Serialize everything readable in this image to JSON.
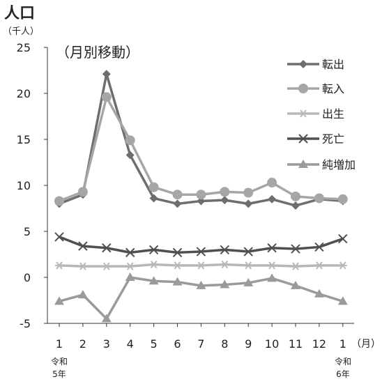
{
  "chart_data": {
    "type": "line",
    "title": "人口",
    "unit_label": "（千人）",
    "subtitle": "（月別移動）",
    "x_unit": "（月）",
    "categories": [
      "1",
      "2",
      "3",
      "4",
      "5",
      "6",
      "7",
      "8",
      "9",
      "10",
      "11",
      "12",
      "1"
    ],
    "start_note": [
      "令和",
      "5年"
    ],
    "end_note": [
      "令和",
      "6年"
    ],
    "ylim": [
      -5,
      25
    ],
    "yticks": [
      -5,
      0,
      5,
      10,
      15,
      20,
      25
    ],
    "grid": false,
    "legend_position": "top-right",
    "series": [
      {
        "name": "転出",
        "color": "#6e6e6e",
        "marker": "diamond",
        "values": [
          8.0,
          9.0,
          22.1,
          13.3,
          8.6,
          8.0,
          8.3,
          8.4,
          8.0,
          8.5,
          7.8,
          8.5,
          8.3
        ]
      },
      {
        "name": "転入",
        "color": "#a6a6a6",
        "marker": "circle",
        "values": [
          8.3,
          9.3,
          19.6,
          14.9,
          9.8,
          9.0,
          9.0,
          9.3,
          9.2,
          10.3,
          8.8,
          8.6,
          8.5
        ]
      },
      {
        "name": "出生",
        "color": "#b8b8b8",
        "marker": "asterisk",
        "values": [
          1.3,
          1.2,
          1.2,
          1.2,
          1.4,
          1.3,
          1.3,
          1.4,
          1.3,
          1.3,
          1.2,
          1.3,
          1.3
        ]
      },
      {
        "name": "死亡",
        "color": "#505050",
        "marker": "x",
        "values": [
          4.4,
          3.4,
          3.2,
          2.7,
          3.0,
          2.7,
          2.8,
          3.0,
          2.8,
          3.2,
          3.1,
          3.3,
          4.2
        ]
      },
      {
        "name": "純増加",
        "color": "#9a9a9a",
        "marker": "triangle",
        "values": [
          -2.6,
          -1.9,
          -4.5,
          0.0,
          -0.4,
          -0.5,
          -0.9,
          -0.8,
          -0.6,
          -0.1,
          -0.9,
          -1.8,
          -2.6
        ]
      }
    ]
  }
}
